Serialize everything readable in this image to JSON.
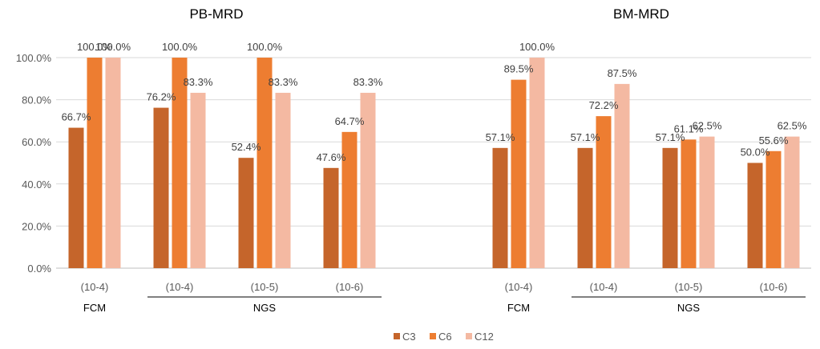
{
  "chart_data": {
    "type": "bar",
    "ylim": [
      0,
      100
    ],
    "yticks": [
      0,
      20,
      40,
      60,
      80,
      100
    ],
    "ytick_labels": [
      "0.0%",
      "20.0%",
      "40.0%",
      "60.0%",
      "80.0%",
      "100.0%"
    ],
    "grid": true,
    "legend_position": "bottom",
    "series": [
      {
        "name": "C3",
        "color": "#C5652B"
      },
      {
        "name": "C6",
        "color": "#ED7D31"
      },
      {
        "name": "C12",
        "color": "#F4B9A2"
      }
    ],
    "panels": [
      {
        "title": "PB-MRD",
        "categories": [
          "(10-4)",
          "(10-4)",
          "(10-5)",
          "(10-6)"
        ],
        "groups": [
          {
            "label": "FCM",
            "start": 0,
            "end": 0,
            "line": false
          },
          {
            "label": "NGS",
            "start": 1,
            "end": 3,
            "line": true
          }
        ],
        "values": [
          [
            66.7,
            100.0,
            100.0
          ],
          [
            76.2,
            100.0,
            83.3
          ],
          [
            52.4,
            100.0,
            83.3
          ],
          [
            47.6,
            64.7,
            83.3
          ]
        ],
        "value_labels": [
          [
            "66.7%",
            "100.0%",
            "100.0%"
          ],
          [
            "76.2%",
            "100.0%",
            "83.3%"
          ],
          [
            "52.4%",
            "100.0%",
            "83.3%"
          ],
          [
            "47.6%",
            "64.7%",
            "83.3%"
          ]
        ]
      },
      {
        "title": "BM-MRD",
        "categories": [
          "(10-4)",
          "(10-4)",
          "(10-5)",
          "(10-6)"
        ],
        "groups": [
          {
            "label": "FCM",
            "start": 0,
            "end": 0,
            "line": false
          },
          {
            "label": "NGS",
            "start": 1,
            "end": 3,
            "line": true
          }
        ],
        "values": [
          [
            57.1,
            89.5,
            100.0
          ],
          [
            57.1,
            72.2,
            87.5
          ],
          [
            57.1,
            61.1,
            62.5
          ],
          [
            50.0,
            55.6,
            62.5
          ]
        ],
        "value_labels": [
          [
            "57.1%",
            "89.5%",
            "100.0%"
          ],
          [
            "57.1%",
            "72.2%",
            "87.5%"
          ],
          [
            "57.1%",
            "61.1%",
            "62.5%"
          ],
          [
            "50.0%",
            "55.6%",
            "62.5%"
          ]
        ]
      }
    ]
  }
}
